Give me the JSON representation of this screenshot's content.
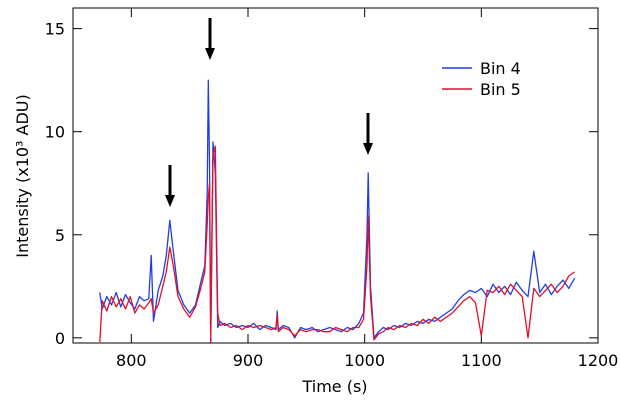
{
  "chart_data": {
    "type": "line",
    "x_label": "Time (s)",
    "y_label": "Intensity (x10³ ADU)",
    "xlim": [
      750,
      1200
    ],
    "xticks": [
      800,
      900,
      1000,
      1100,
      1200
    ],
    "ylim": [
      -0.25,
      16
    ],
    "yticks": [
      0,
      5,
      10,
      15
    ],
    "legend": "upper right",
    "x": [
      773,
      775,
      779,
      783,
      787,
      791,
      795,
      799,
      803,
      807,
      811,
      815,
      817,
      819,
      823,
      827,
      830,
      833,
      836,
      840,
      845,
      850,
      855,
      860,
      863,
      865,
      866,
      867,
      868,
      870,
      872,
      874,
      876,
      880,
      885,
      890,
      895,
      900,
      905,
      910,
      915,
      920,
      924,
      925,
      926,
      930,
      935,
      940,
      945,
      950,
      955,
      960,
      965,
      970,
      975,
      980,
      985,
      990,
      995,
      999,
      1002,
      1003,
      1005,
      1008,
      1012,
      1016,
      1020,
      1025,
      1030,
      1035,
      1040,
      1045,
      1050,
      1055,
      1060,
      1065,
      1070,
      1075,
      1080,
      1085,
      1090,
      1095,
      1100,
      1105,
      1110,
      1115,
      1120,
      1125,
      1130,
      1135,
      1140,
      1145,
      1150,
      1155,
      1160,
      1165,
      1170,
      1175,
      1180
    ],
    "series": [
      {
        "name": "Bin 4",
        "color": "#1f3fe0",
        "values": [
          2.2,
          1.4,
          2.0,
          1.6,
          2.2,
          1.5,
          2.1,
          1.7,
          1.4,
          2.0,
          1.8,
          1.9,
          4.0,
          0.8,
          2.3,
          3.0,
          4.0,
          5.7,
          4.2,
          2.3,
          1.6,
          1.2,
          1.6,
          2.8,
          3.5,
          7.0,
          12.5,
          8.5,
          -0.2,
          9.5,
          8.0,
          0.5,
          0.8,
          0.6,
          0.7,
          0.5,
          0.6,
          0.5,
          0.7,
          0.4,
          0.6,
          0.5,
          0.4,
          1.3,
          0.4,
          0.6,
          0.5,
          0.0,
          0.5,
          0.4,
          0.5,
          0.3,
          0.4,
          0.5,
          0.4,
          0.3,
          0.5,
          0.4,
          0.7,
          1.2,
          5.0,
          8.0,
          2.5,
          0.0,
          0.3,
          0.5,
          0.4,
          0.6,
          0.5,
          0.7,
          0.6,
          0.8,
          0.7,
          0.9,
          0.8,
          1.0,
          1.2,
          1.4,
          1.8,
          2.1,
          2.3,
          2.2,
          2.4,
          2.0,
          2.6,
          2.2,
          2.5,
          2.1,
          2.7,
          2.3,
          2.0,
          4.2,
          2.2,
          2.6,
          2.1,
          2.5,
          2.8,
          2.4,
          2.9
        ]
      },
      {
        "name": "Bin 5",
        "color": "#e0102a",
        "values": [
          -0.2,
          1.8,
          1.3,
          2.0,
          1.5,
          1.9,
          1.4,
          2.0,
          1.2,
          1.6,
          1.4,
          1.7,
          1.9,
          1.2,
          1.6,
          2.5,
          3.2,
          4.4,
          3.5,
          2.0,
          1.4,
          1.0,
          1.5,
          2.5,
          3.2,
          5.5,
          6.8,
          7.5,
          -0.2,
          8.8,
          9.3,
          1.2,
          0.6,
          0.7,
          0.5,
          0.6,
          0.4,
          0.6,
          0.5,
          0.6,
          0.5,
          0.4,
          0.5,
          1.1,
          0.3,
          0.5,
          0.4,
          0.1,
          0.4,
          0.3,
          0.4,
          0.4,
          0.3,
          0.3,
          0.5,
          0.4,
          0.3,
          0.5,
          0.5,
          0.9,
          3.5,
          5.9,
          2.0,
          -0.1,
          0.2,
          0.3,
          0.5,
          0.4,
          0.6,
          0.5,
          0.7,
          0.6,
          0.9,
          0.7,
          1.0,
          0.8,
          1.0,
          1.2,
          1.5,
          1.8,
          2.0,
          1.7,
          0.1,
          2.3,
          2.2,
          2.5,
          2.1,
          2.6,
          2.3,
          2.0,
          0.0,
          2.4,
          2.0,
          2.3,
          2.6,
          2.2,
          2.5,
          3.0,
          3.2
        ]
      }
    ]
  }
}
